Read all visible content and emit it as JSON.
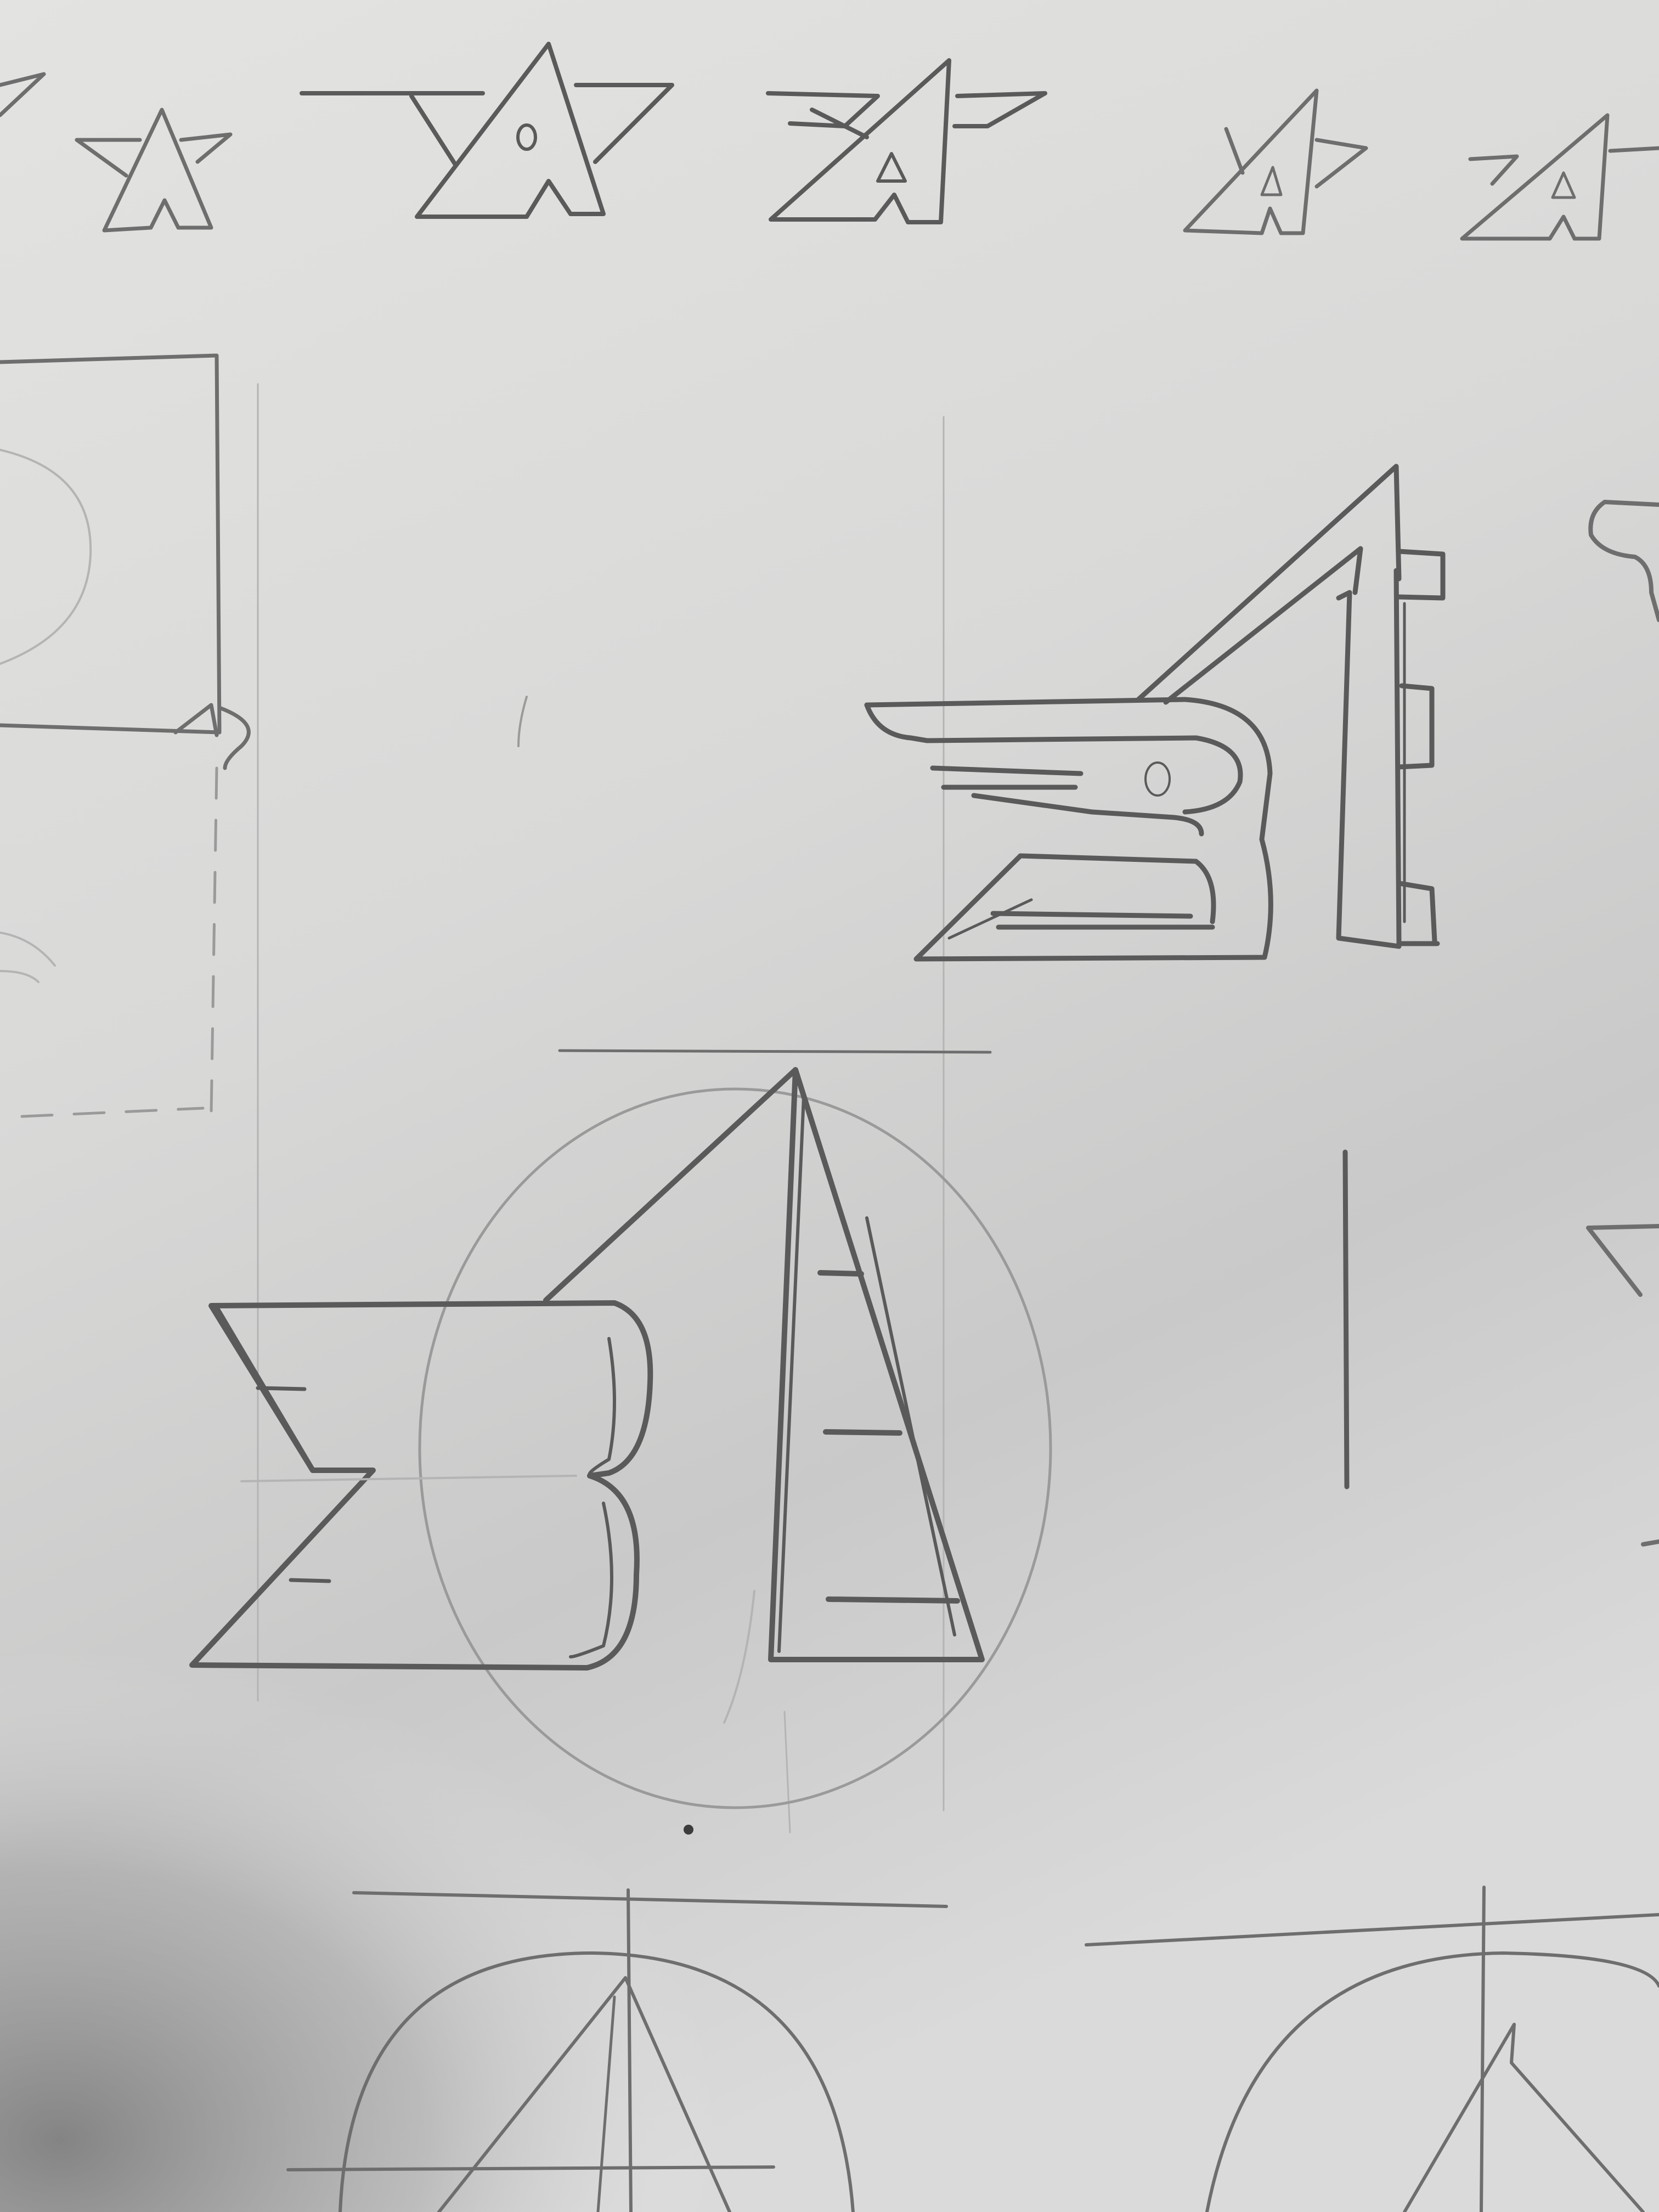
{
  "paper": {
    "base_color": "#dcdcdc",
    "highlight_color": "#e8e8e6",
    "shadow_color": "#8c8c8c",
    "pencil_color": "#6e6e6e"
  },
  "sketches": [
    {
      "name": "star-a-mark-small-1"
    },
    {
      "name": "star-a-mark-medium"
    },
    {
      "name": "winged-a-mark"
    },
    {
      "name": "star-a-mark-small-2"
    },
    {
      "name": "star-a-mark-small-3"
    },
    {
      "name": "winged-b-e-monogram"
    },
    {
      "name": "circle-b-e-monogram"
    },
    {
      "name": "construction-circle-left"
    },
    {
      "name": "construction-circle-right"
    }
  ]
}
